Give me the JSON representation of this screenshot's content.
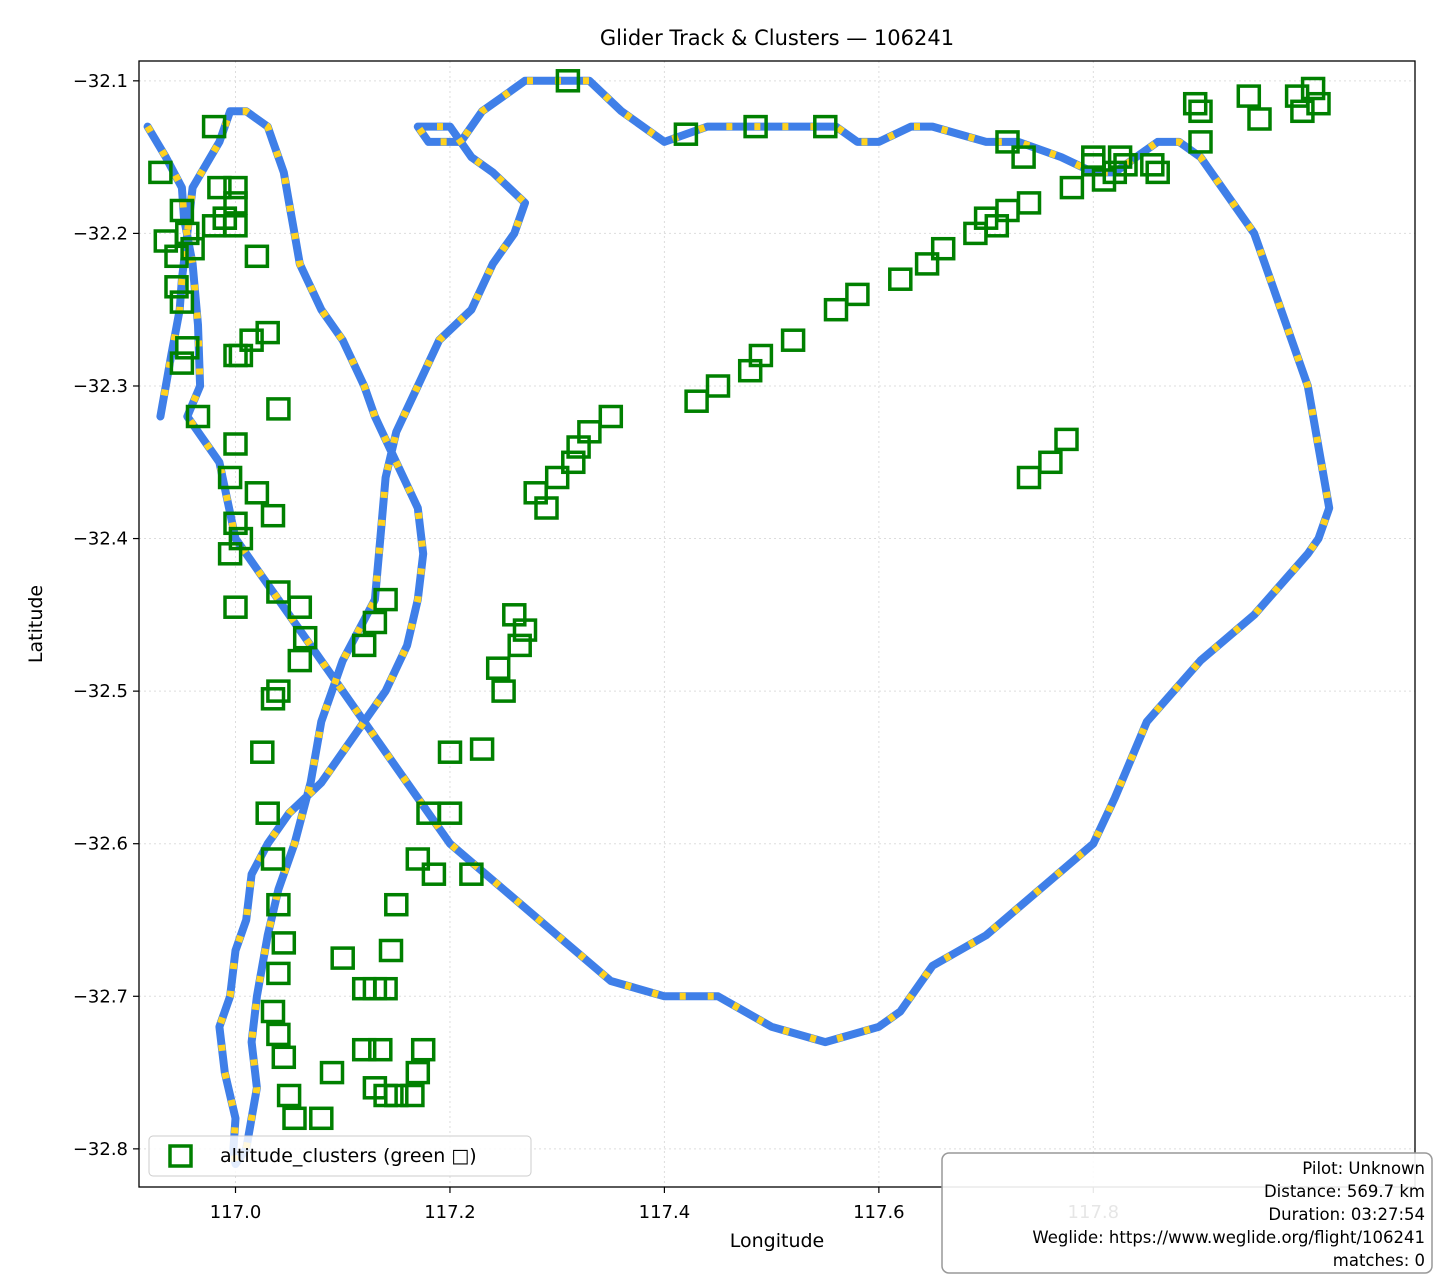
{
  "chart_data": {
    "type": "scatter",
    "title": "Glider Track & Clusters — 106241",
    "xlabel": "Longitude",
    "ylabel": "Latitude",
    "xlim": [
      116.91,
      118.1
    ],
    "ylim": [
      -32.825,
      -32.087
    ],
    "x_ticks": [
      117.0,
      117.2,
      117.4,
      117.6,
      117.8
    ],
    "x_tick_labels": [
      "117.0",
      "117.2",
      "117.4",
      "117.6",
      "117.8"
    ],
    "y_ticks": [
      -32.1,
      -32.2,
      -32.3,
      -32.4,
      -32.5,
      -32.6,
      -32.7,
      -32.8
    ],
    "y_tick_labels": [
      "−32.1",
      "−32.2",
      "−32.3",
      "−32.4",
      "−32.5",
      "−32.6",
      "−32.7",
      "−32.8"
    ],
    "grid": true,
    "legend_placement": "lower-left",
    "legend": [
      {
        "label": "altitude_clusters (green □)",
        "marker": "square",
        "color": "#008000"
      }
    ],
    "colors": {
      "track": "#3f7fe8",
      "climb_segments": "#ffd21f",
      "clusters": "#008000",
      "grid": "#dddddd"
    },
    "track": {
      "lon": [
        116.918,
        116.935,
        116.95,
        116.952,
        116.96,
        116.965,
        116.967,
        116.955,
        116.985,
        117.0,
        117.05,
        117.1,
        117.15,
        117.2,
        117.25,
        117.3,
        117.35,
        117.4,
        117.45,
        117.5,
        117.55,
        117.6,
        117.62,
        117.65,
        117.7,
        117.75,
        117.8,
        117.82,
        117.85,
        117.9,
        117.95,
        118.0,
        118.01,
        118.02,
        118.0,
        117.95,
        117.9,
        117.88,
        117.86,
        117.84,
        117.82,
        117.8,
        117.77,
        117.73,
        117.7,
        117.65,
        117.63,
        117.6,
        117.58,
        117.56,
        117.53,
        117.5,
        117.47,
        117.44,
        117.4,
        117.36,
        117.33,
        117.3,
        117.27,
        117.25,
        117.23,
        117.21,
        117.18,
        117.17,
        117.175,
        117.18,
        117.2,
        117.22,
        117.24,
        117.27,
        117.26,
        117.24,
        117.22,
        117.19,
        117.17,
        117.15,
        117.14,
        117.135,
        117.13,
        117.1,
        117.08,
        117.07,
        117.055,
        117.04,
        117.03,
        117.02,
        117.015,
        117.02,
        117.01,
        117.0,
        116.998,
        117.0,
        116.99,
        116.985,
        116.995,
        117.0,
        117.01,
        117.015,
        117.03,
        117.05,
        117.08,
        117.1,
        117.12,
        117.14,
        117.16,
        117.17,
        117.175,
        117.17,
        117.15,
        117.13,
        117.12,
        117.1,
        117.08,
        117.06,
        117.055,
        117.05,
        117.045,
        117.04,
        117.035,
        117.03,
        117.01,
        116.995,
        116.99,
        116.985,
        116.96,
        116.955,
        116.95,
        116.948,
        116.94,
        116.935,
        116.93
      ],
      "lat": [
        -32.13,
        -32.15,
        -32.17,
        -32.19,
        -32.22,
        -32.26,
        -32.3,
        -32.32,
        -32.35,
        -32.4,
        -32.45,
        -32.5,
        -32.55,
        -32.6,
        -32.63,
        -32.66,
        -32.69,
        -32.7,
        -32.7,
        -32.72,
        -32.73,
        -32.72,
        -32.71,
        -32.68,
        -32.66,
        -32.63,
        -32.6,
        -32.57,
        -32.52,
        -32.48,
        -32.45,
        -32.41,
        -32.4,
        -32.38,
        -32.3,
        -32.2,
        -32.15,
        -32.14,
        -32.14,
        -32.15,
        -32.16,
        -32.16,
        -32.15,
        -32.14,
        -32.14,
        -32.13,
        -32.13,
        -32.14,
        -32.14,
        -32.13,
        -32.13,
        -32.13,
        -32.13,
        -32.13,
        -32.14,
        -32.12,
        -32.1,
        -32.1,
        -32.1,
        -32.11,
        -32.12,
        -32.14,
        -32.14,
        -32.13,
        -32.13,
        -32.13,
        -32.13,
        -32.15,
        -32.16,
        -32.18,
        -32.2,
        -32.22,
        -32.25,
        -32.27,
        -32.3,
        -32.33,
        -32.36,
        -32.4,
        -32.44,
        -32.48,
        -32.52,
        -32.56,
        -32.6,
        -32.63,
        -32.66,
        -32.7,
        -32.73,
        -32.76,
        -32.8,
        -32.81,
        -32.8,
        -32.78,
        -32.75,
        -32.72,
        -32.7,
        -32.67,
        -32.65,
        -32.62,
        -32.6,
        -32.58,
        -32.56,
        -32.54,
        -32.52,
        -32.5,
        -32.47,
        -32.44,
        -32.41,
        -32.38,
        -32.35,
        -32.32,
        -32.3,
        -32.27,
        -32.25,
        -32.22,
        -32.2,
        -32.18,
        -32.16,
        -32.15,
        -32.14,
        -32.13,
        -32.12,
        -32.12,
        -32.13,
        -32.14,
        -32.17,
        -32.2,
        -32.23,
        -32.25,
        -32.28,
        -32.3,
        -32.32
      ]
    },
    "clusters": {
      "lon": [
        116.93,
        116.945,
        116.95,
        116.955,
        116.965,
        116.935,
        116.945,
        116.95,
        116.95,
        116.955,
        116.98,
        116.985,
        116.99,
        117.0,
        117.005,
        117.015,
        117.03,
        117.04,
        116.995,
        117.0,
        117.0,
        116.995,
        117.02,
        117.035,
        117.04,
        117.06,
        117.065,
        117.06,
        117.04,
        117.035,
        117.025,
        117.03,
        117.035,
        117.04,
        117.045,
        117.04,
        117.035,
        117.04,
        117.045,
        117.05,
        117.055,
        117.08,
        117.09,
        117.12,
        117.13,
        117.14,
        117.135,
        117.14,
        117.145,
        117.15,
        117.17,
        117.18,
        117.2,
        117.22,
        117.25,
        117.265,
        117.27,
        117.26,
        117.245,
        117.23,
        117.2,
        117.185,
        117.175,
        117.17,
        117.165,
        117.15,
        117.13,
        117.12,
        117.1,
        117.12,
        117.13,
        117.14,
        116.96,
        117.0,
        117.0,
        117.02,
        116.98,
        116.99,
        117.0,
        117.31,
        117.42,
        117.485,
        117.55,
        117.72,
        117.735,
        117.8,
        117.8,
        117.9,
        117.99,
        117.995,
        118.005,
        118.01,
        117.74,
        117.76,
        117.775,
        117.955,
        117.945,
        117.9,
        117.895,
        117.86,
        117.855,
        117.83,
        117.825,
        117.82,
        117.81,
        117.78,
        117.74,
        117.72,
        117.7,
        117.71,
        117.69,
        117.66,
        117.645,
        117.62,
        117.58,
        117.56,
        117.52,
        117.49,
        117.48,
        117.45,
        117.43,
        117.35,
        117.33,
        117.32,
        117.315,
        117.3,
        117.28,
        117.29,
        117.0,
        117.005
      ],
      "lat": [
        -32.16,
        -32.215,
        -32.245,
        -32.275,
        -32.32,
        -32.205,
        -32.235,
        -32.185,
        -32.285,
        -32.2,
        -32.13,
        -32.17,
        -32.19,
        -32.18,
        -32.28,
        -32.27,
        -32.265,
        -32.315,
        -32.41,
        -32.445,
        -32.338,
        -32.36,
        -32.37,
        -32.385,
        -32.435,
        -32.445,
        -32.465,
        -32.48,
        -32.5,
        -32.505,
        -32.54,
        -32.58,
        -32.61,
        -32.64,
        -32.665,
        -32.685,
        -32.71,
        -32.725,
        -32.74,
        -32.765,
        -32.78,
        -32.78,
        -32.75,
        -32.735,
        -32.76,
        -32.765,
        -32.735,
        -32.695,
        -32.67,
        -32.64,
        -32.61,
        -32.58,
        -32.54,
        -32.62,
        -32.5,
        -32.47,
        -32.46,
        -32.45,
        -32.485,
        -32.538,
        -32.58,
        -32.62,
        -32.735,
        -32.75,
        -32.765,
        -32.765,
        -32.695,
        -32.695,
        -32.675,
        -32.47,
        -32.455,
        -32.44,
        -32.21,
        -32.17,
        -32.195,
        -32.215,
        -32.195,
        -32.19,
        -32.28,
        -32.1,
        -32.135,
        -32.13,
        -32.13,
        -32.14,
        -32.15,
        -32.15,
        -32.155,
        -32.14,
        -32.11,
        -32.12,
        -32.105,
        -32.115,
        -32.36,
        -32.35,
        -32.335,
        -32.125,
        -32.11,
        -32.12,
        -32.115,
        -32.16,
        -32.155,
        -32.155,
        -32.15,
        -32.16,
        -32.165,
        -32.17,
        -32.18,
        -32.185,
        -32.19,
        -32.195,
        -32.2,
        -32.21,
        -32.22,
        -32.23,
        -32.24,
        -32.25,
        -32.27,
        -32.28,
        -32.29,
        -32.3,
        -32.31,
        -32.32,
        -32.33,
        -32.34,
        -32.35,
        -32.36,
        -32.37,
        -32.38,
        -32.39,
        -32.4
      ]
    }
  },
  "info_box": {
    "pilot": "Pilot: Unknown",
    "distance": "Distance: 569.7 km",
    "duration": "Duration: 03:27:54",
    "weglide": "Weglide: https://www.weglide.org/flight/106241",
    "matches": "matches: 0"
  }
}
